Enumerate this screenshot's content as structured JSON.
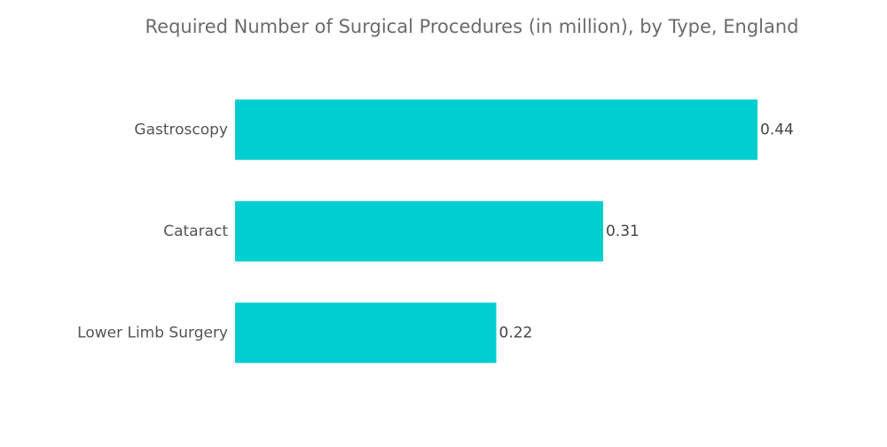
{
  "chart_data": {
    "type": "bar",
    "orientation": "horizontal",
    "title": "Required Number of Surgical Procedures (in million), by Type, England",
    "categories": [
      "Gastroscopy",
      "Cataract",
      "Lower Limb Surgery"
    ],
    "values": [
      0.44,
      0.31,
      0.22
    ],
    "color": "#00ced1"
  }
}
